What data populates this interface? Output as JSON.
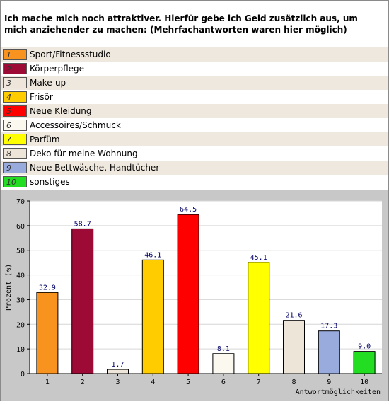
{
  "question": "Ich mache mich noch attraktiver. Hierfür gebe ich Geld zusätzlich aus, um mich anziehender zu machen: (Mehrfachantworten waren hier möglich)",
  "legend": [
    {
      "num": "1",
      "label": "Sport/Fitnessstudio",
      "color": "#f7931e"
    },
    {
      "num": "2",
      "label": "Körperpflege",
      "color": "#9e0a36"
    },
    {
      "num": "3",
      "label": "Make-up",
      "color": "#eee6da"
    },
    {
      "num": "4",
      "label": "Frisör",
      "color": "#ffcc00"
    },
    {
      "num": "5",
      "label": "Neue Kleidung",
      "color": "#ff0000"
    },
    {
      "num": "6",
      "label": "Accessoires/Schmuck",
      "color": "#fbf8ef"
    },
    {
      "num": "7",
      "label": "Parfüm",
      "color": "#ffff00"
    },
    {
      "num": "8",
      "label": "Deko für meine Wohnung",
      "color": "#ede5d8"
    },
    {
      "num": "9",
      "label": "Neue Bettwäsche, Handtücher",
      "color": "#99abdd"
    },
    {
      "num": "10",
      "label": "sonstiges",
      "color": "#22dd22"
    }
  ],
  "chart_data": {
    "type": "bar",
    "categories": [
      "1",
      "2",
      "3",
      "4",
      "5",
      "6",
      "7",
      "8",
      "9",
      "10"
    ],
    "values": [
      32.9,
      58.7,
      1.7,
      46.1,
      64.5,
      8.1,
      45.1,
      21.6,
      17.3,
      9.0
    ],
    "value_labels": [
      "32.9",
      "58.7",
      "1.7",
      "46.1",
      "64.5",
      "8.1",
      "45.1",
      "21.6",
      "17.3",
      "9.0"
    ],
    "colors": [
      "#f7931e",
      "#9e0a36",
      "#eee6da",
      "#ffcc00",
      "#ff0000",
      "#fbf8ef",
      "#ffff00",
      "#ede5d8",
      "#99abdd",
      "#22dd22"
    ],
    "xlabel": "Antwortmöglichkeiten",
    "ylabel": "Prozent (%)",
    "ylim": [
      0,
      70
    ],
    "yticks": [
      "0",
      "10",
      "20",
      "30",
      "40",
      "50",
      "60",
      "70"
    ],
    "grid": true
  }
}
